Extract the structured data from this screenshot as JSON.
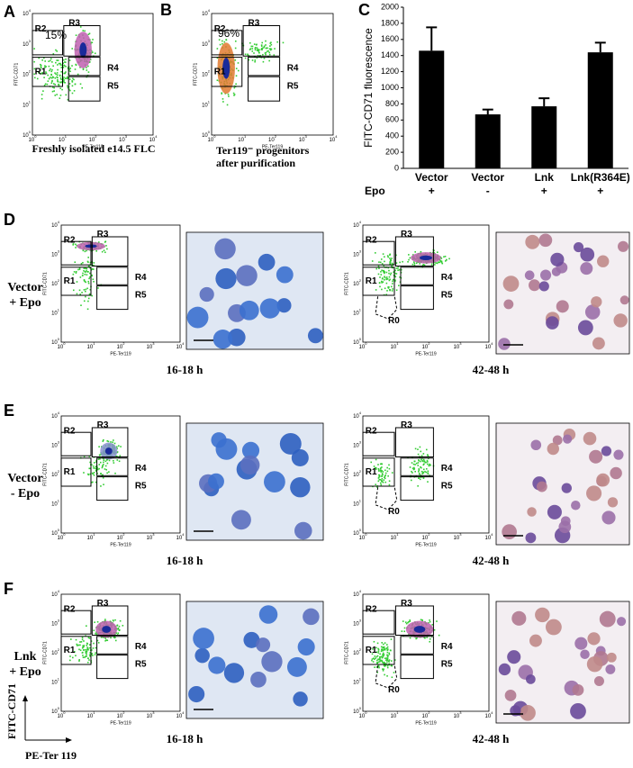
{
  "flow_axis": {
    "x_label": "PE-Ter119",
    "y_label": "FITC-CD71",
    "base": "10",
    "exponents": [
      "0",
      "1",
      "2",
      "3",
      "4"
    ]
  },
  "panel_a": {
    "letter": "A",
    "percent": "15%",
    "gates": [
      "R2",
      "R3",
      "R4",
      "R1",
      "R5"
    ],
    "caption": "Freshly isolated e14.5 FLC"
  },
  "panel_b": {
    "letter": "B",
    "percent": "96%",
    "gates": [
      "R2",
      "R3",
      "R4",
      "R1",
      "R5"
    ],
    "caption": [
      "Ter119⁻ progenitors",
      "after purification"
    ]
  },
  "chart_data": {
    "type": "bar",
    "letter": "C",
    "y_label": "FITC-CD71 fluorescence",
    "categories": [
      "Vector",
      "Vector",
      "Lnk",
      "Lnk(R364E)"
    ],
    "epo_label": "Epo",
    "epo": [
      "+",
      "-",
      "+",
      "+"
    ],
    "values": [
      1460,
      670,
      770,
      1440
    ],
    "errors": [
      290,
      60,
      100,
      120
    ],
    "color": "#000000",
    "ylim": [
      0,
      2000
    ],
    "yticks": [
      0,
      200,
      400,
      600,
      800,
      1000,
      1200,
      1400,
      1600,
      1800,
      2000
    ]
  },
  "rows": [
    {
      "letter": "D",
      "condition": [
        "Vector",
        "+ Epo"
      ],
      "early_gates": [
        "R2",
        "R3",
        "R4",
        "R1",
        "R5"
      ],
      "late_gates": [
        "R2",
        "R3",
        "R4",
        "R1",
        "R5",
        "R0"
      ],
      "times": [
        "16-18 h",
        "42-48 h"
      ]
    },
    {
      "letter": "E",
      "condition": [
        "Vector",
        "- Epo"
      ],
      "early_gates": [
        "R2",
        "R3",
        "R4",
        "R1",
        "R5"
      ],
      "late_gates": [
        "R2",
        "R3",
        "R4",
        "R1",
        "R5",
        "R0"
      ],
      "times": [
        "16-18 h",
        "42-48 h"
      ]
    },
    {
      "letter": "F",
      "condition": [
        "Lnk",
        "+ Epo"
      ],
      "early_gates": [
        "R2",
        "R3",
        "R4",
        "R1",
        "R5"
      ],
      "late_gates": [
        "R2",
        "R3",
        "R4",
        "R1",
        "R5",
        "R0"
      ],
      "times": [
        "16-18 h",
        "42-48 h"
      ]
    }
  ],
  "legend_axes": {
    "y": "FITC-CD71",
    "x": "PE-Ter 119"
  }
}
